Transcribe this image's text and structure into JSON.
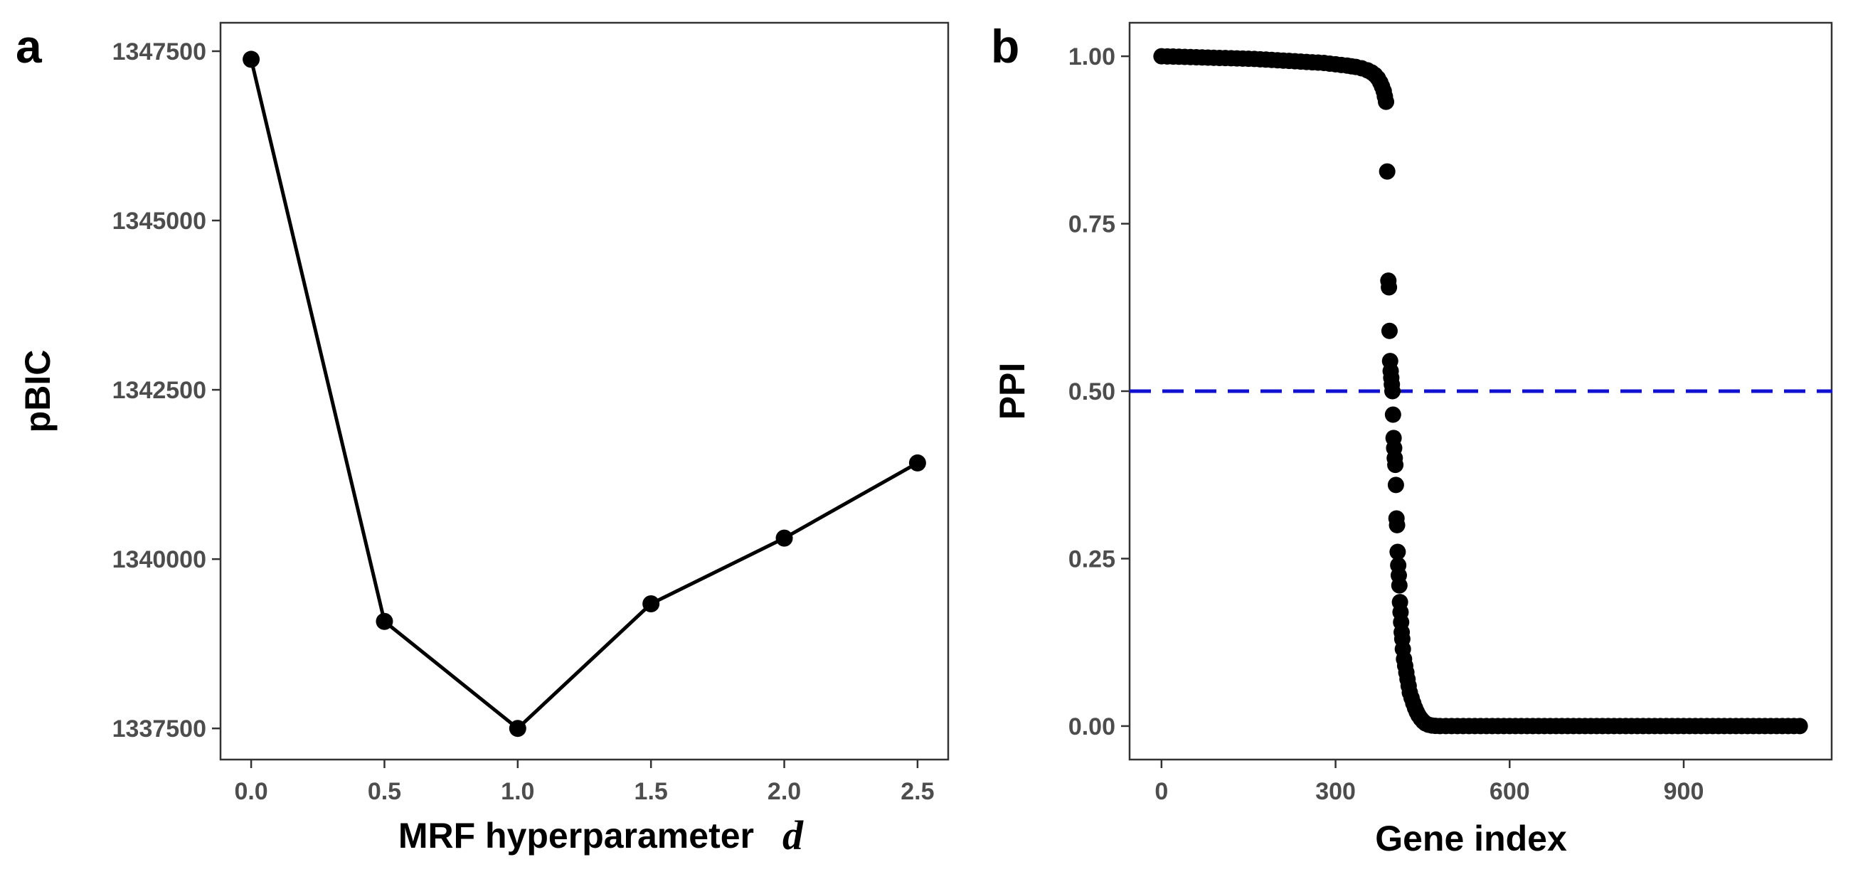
{
  "chart_data": [
    {
      "panel": "a",
      "type": "line",
      "xlabel": "MRF hyperparameter",
      "xlabel_symbol": "d",
      "ylabel": "pBIC",
      "x": [
        0.0,
        0.5,
        1.0,
        1.5,
        2.0,
        2.5
      ],
      "y": [
        1347380,
        1339080,
        1337500,
        1339340,
        1340310,
        1341420
      ],
      "xlim": [
        -0.115,
        2.615
      ],
      "ylim": [
        1337040,
        1347920
      ],
      "xticks": [
        "0.0",
        "0.5",
        "1.0",
        "1.5",
        "2.0",
        "2.5"
      ],
      "yticks": [
        "1337500",
        "1340000",
        "1342500",
        "1345000",
        "1347500"
      ],
      "markers": true,
      "color": "#000000",
      "grid": false
    },
    {
      "panel": "b",
      "type": "scatter",
      "xlabel": "Gene index",
      "ylabel": "PPI",
      "xlim": [
        -55,
        1155
      ],
      "ylim": [
        -0.05,
        1.05
      ],
      "xticks": [
        "0",
        "300",
        "600",
        "900"
      ],
      "yticks": [
        "0.00",
        "0.25",
        "0.50",
        "0.75",
        "1.00"
      ],
      "reference_line": {
        "y": 0.5,
        "style": "dashed",
        "color": "#1010d0"
      },
      "points": [
        [
          0,
          1.0
        ],
        [
          20,
          0.9995
        ],
        [
          40,
          0.999
        ],
        [
          60,
          0.9985
        ],
        [
          80,
          0.998
        ],
        [
          100,
          0.9975
        ],
        [
          120,
          0.997
        ],
        [
          140,
          0.9965
        ],
        [
          160,
          0.996
        ],
        [
          180,
          0.995
        ],
        [
          200,
          0.994
        ],
        [
          220,
          0.993
        ],
        [
          240,
          0.992
        ],
        [
          260,
          0.991
        ],
        [
          280,
          0.99
        ],
        [
          300,
          0.988
        ],
        [
          320,
          0.986
        ],
        [
          335,
          0.984
        ],
        [
          345,
          0.982
        ],
        [
          355,
          0.979
        ],
        [
          362,
          0.976
        ],
        [
          368,
          0.972
        ],
        [
          373,
          0.967
        ],
        [
          377,
          0.961
        ],
        [
          380,
          0.955
        ],
        [
          383,
          0.948
        ],
        [
          385,
          0.94
        ],
        [
          387,
          0.932
        ],
        [
          389,
          0.828
        ],
        [
          391,
          0.665
        ],
        [
          392,
          0.655
        ],
        [
          393,
          0.59
        ],
        [
          394,
          0.545
        ],
        [
          395,
          0.53
        ],
        [
          396,
          0.52
        ],
        [
          397,
          0.51
        ],
        [
          398,
          0.5
        ],
        [
          399,
          0.465
        ],
        [
          400,
          0.43
        ],
        [
          401,
          0.415
        ],
        [
          402,
          0.4
        ],
        [
          403,
          0.39
        ],
        [
          404,
          0.36
        ],
        [
          405,
          0.31
        ],
        [
          406,
          0.3
        ],
        [
          407,
          0.26
        ],
        [
          408,
          0.24
        ],
        [
          409,
          0.225
        ],
        [
          410,
          0.21
        ],
        [
          411,
          0.185
        ],
        [
          412,
          0.17
        ],
        [
          413,
          0.155
        ],
        [
          414,
          0.14
        ],
        [
          415,
          0.13
        ],
        [
          416,
          0.115
        ],
        [
          418,
          0.1
        ],
        [
          420,
          0.09
        ],
        [
          422,
          0.08
        ],
        [
          424,
          0.07
        ],
        [
          426,
          0.06
        ],
        [
          428,
          0.05
        ],
        [
          431,
          0.042
        ],
        [
          434,
          0.034
        ],
        [
          437,
          0.027
        ],
        [
          440,
          0.021
        ],
        [
          443,
          0.016
        ],
        [
          447,
          0.011
        ],
        [
          451,
          0.007
        ],
        [
          455,
          0.004
        ],
        [
          460,
          0.002
        ],
        [
          466,
          0.0008
        ],
        [
          472,
          0.0003
        ],
        [
          480,
          0.0001
        ],
        [
          490,
          0
        ],
        [
          500,
          0
        ],
        [
          510,
          0
        ],
        [
          520,
          0
        ],
        [
          530,
          0
        ],
        [
          540,
          0
        ],
        [
          550,
          0
        ],
        [
          560,
          0
        ],
        [
          570,
          0
        ],
        [
          580,
          0
        ],
        [
          590,
          0
        ],
        [
          600,
          0
        ],
        [
          610,
          0
        ],
        [
          620,
          0
        ],
        [
          630,
          0
        ],
        [
          640,
          0
        ],
        [
          650,
          0
        ],
        [
          660,
          0
        ],
        [
          670,
          0
        ],
        [
          680,
          0
        ],
        [
          690,
          0
        ],
        [
          700,
          0
        ],
        [
          710,
          0
        ],
        [
          720,
          0
        ],
        [
          730,
          0
        ],
        [
          740,
          0
        ],
        [
          750,
          0
        ],
        [
          760,
          0
        ],
        [
          770,
          0
        ],
        [
          780,
          0
        ],
        [
          790,
          0
        ],
        [
          800,
          0
        ],
        [
          810,
          0
        ],
        [
          820,
          0
        ],
        [
          830,
          0
        ],
        [
          840,
          0
        ],
        [
          850,
          0
        ],
        [
          860,
          0
        ],
        [
          870,
          0
        ],
        [
          880,
          0
        ],
        [
          890,
          0
        ],
        [
          900,
          0
        ],
        [
          910,
          0
        ],
        [
          920,
          0
        ],
        [
          930,
          0
        ],
        [
          940,
          0
        ],
        [
          950,
          0
        ],
        [
          960,
          0
        ],
        [
          970,
          0
        ],
        [
          980,
          0
        ],
        [
          990,
          0
        ],
        [
          1000,
          0
        ],
        [
          1010,
          0
        ],
        [
          1020,
          0
        ],
        [
          1030,
          0
        ],
        [
          1040,
          0
        ],
        [
          1050,
          0
        ],
        [
          1060,
          0
        ],
        [
          1070,
          0
        ],
        [
          1080,
          0
        ],
        [
          1090,
          0
        ],
        [
          1100,
          0
        ]
      ],
      "color": "#000000",
      "grid": false
    }
  ]
}
